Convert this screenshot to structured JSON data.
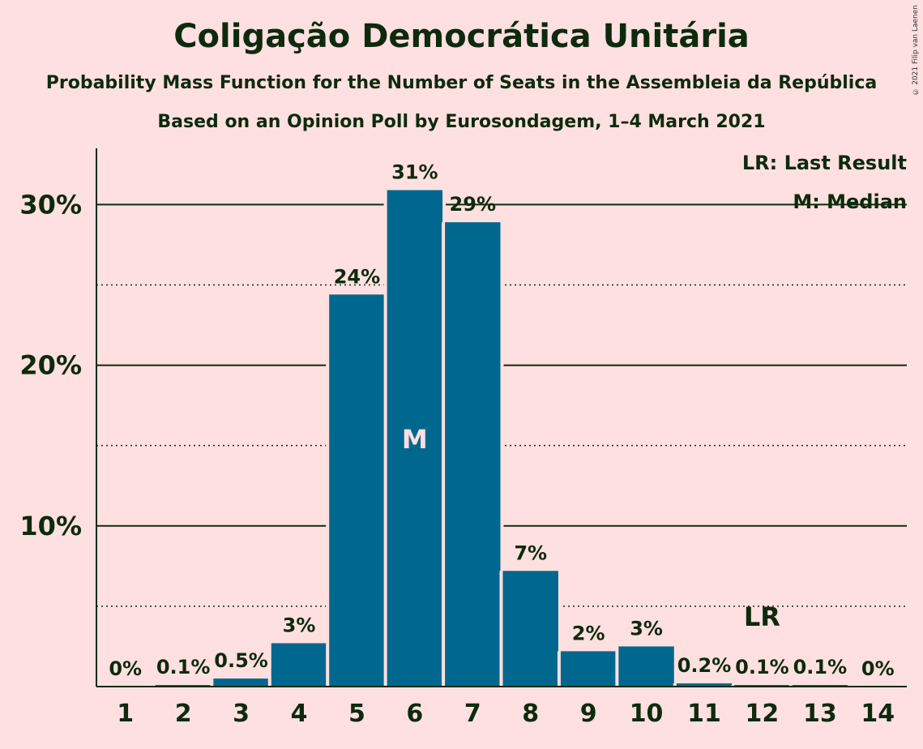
{
  "chart_data": {
    "type": "bar",
    "title": "Coligação Democrática Unitária",
    "subtitle": "Probability Mass Function for the Number of Seats in the Assembleia da República",
    "subtitle2": "Based on an Opinion Poll by Eurosondagem, 1–4 March 2021",
    "copyright": "© 2021 Filip van Laenen",
    "categories": [
      "1",
      "2",
      "3",
      "4",
      "5",
      "6",
      "7",
      "8",
      "9",
      "10",
      "11",
      "12",
      "13",
      "14"
    ],
    "values": [
      0,
      0.1,
      0.5,
      2.7,
      24.4,
      30.9,
      28.9,
      7.2,
      2.2,
      2.5,
      0.2,
      0.1,
      0.1,
      0
    ],
    "value_labels": [
      "0%",
      "0.1%",
      "0.5%",
      "3%",
      "24%",
      "31%",
      "29%",
      "7%",
      "2%",
      "3%",
      "0.2%",
      "0.1%",
      "0.1%",
      "0%"
    ],
    "ylim": [
      0,
      33.5
    ],
    "yticks": [
      10,
      20,
      30
    ],
    "ytick_labels": [
      "10%",
      "20%",
      "30%"
    ],
    "minor_gridlines": [
      5,
      15,
      25
    ],
    "grid": true,
    "bar_color": "#00688F",
    "median_category": "6",
    "median_label": "M",
    "last_result_category": "12",
    "last_result_label": "LR",
    "legend": [
      "LR: Last Result",
      "M: Median"
    ],
    "legend_position": "top-right"
  }
}
